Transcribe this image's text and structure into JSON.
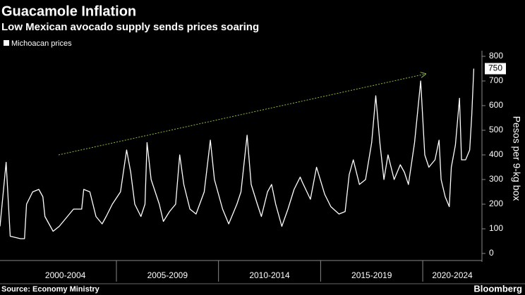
{
  "chart_data": {
    "type": "line",
    "title": "Guacamole Inflation",
    "subtitle": "Low Mexican avocado supply sends prices soaring",
    "y_axis_label": "Pesos per 9-kg box",
    "source": "Source: Economy Ministry",
    "brand": "Bloomberg",
    "legend_position": "top-left",
    "grid": false,
    "xlim": [
      1999.3,
      2022.9
    ],
    "ylim": [
      -20,
      800
    ],
    "yticks": [
      0,
      100,
      200,
      300,
      400,
      500,
      600,
      700,
      800
    ],
    "x_groups": [
      {
        "label": "2000-2004",
        "start": 2000,
        "end": 2005
      },
      {
        "label": "2005-2009",
        "start": 2005,
        "end": 2010
      },
      {
        "label": "2010-2014",
        "start": 2010,
        "end": 2015
      },
      {
        "label": "2015-2019",
        "start": 2015,
        "end": 2020
      },
      {
        "label": "2020-2024",
        "start": 2020,
        "end": 2025
      }
    ],
    "x": [
      1999.3,
      1999.6,
      1999.8,
      2000.3,
      2000.5,
      2000.6,
      2000.9,
      2001.2,
      2001.4,
      2001.5,
      2001.9,
      2002.2,
      2002.6,
      2002.9,
      2003.3,
      2003.4,
      2003.7,
      2004.0,
      2004.3,
      2004.5,
      2004.8,
      2005.2,
      2005.5,
      2005.7,
      2005.9,
      2006.2,
      2006.4,
      2006.5,
      2006.7,
      2007.1,
      2007.3,
      2007.6,
      2007.9,
      2008.1,
      2008.3,
      2008.6,
      2008.9,
      2009.3,
      2009.6,
      2009.8,
      2010.2,
      2010.5,
      2010.9,
      2011.1,
      2011.4,
      2011.6,
      2011.9,
      2012.1,
      2012.4,
      2012.6,
      2012.8,
      2013.1,
      2013.4,
      2013.7,
      2014.0,
      2014.1,
      2014.5,
      2014.8,
      2015.2,
      2015.5,
      2015.9,
      2016.2,
      2016.4,
      2016.6,
      2016.9,
      2017.2,
      2017.5,
      2017.7,
      2017.9,
      2018.1,
      2018.3,
      2018.6,
      2018.9,
      2019.1,
      2019.3,
      2019.6,
      2019.9,
      2020.1,
      2020.3,
      2020.6,
      2020.8,
      2020.9,
      2021.1,
      2021.3,
      2021.4,
      2021.6,
      2021.8,
      2021.9,
      2022.1,
      2022.3,
      2022.4,
      2022.5
    ],
    "series": [
      {
        "name": "Michoacan prices",
        "color": "#ffffff",
        "values": [
          110,
          370,
          70,
          60,
          60,
          200,
          250,
          260,
          230,
          150,
          90,
          110,
          150,
          180,
          180,
          260,
          250,
          150,
          120,
          150,
          200,
          250,
          420,
          330,
          200,
          150,
          200,
          450,
          300,
          200,
          130,
          170,
          200,
          400,
          280,
          180,
          160,
          250,
          460,
          300,
          180,
          120,
          200,
          250,
          480,
          280,
          200,
          150,
          250,
          280,
          200,
          110,
          180,
          260,
          310,
          290,
          220,
          350,
          240,
          190,
          160,
          170,
          320,
          380,
          280,
          300,
          450,
          640,
          450,
          300,
          400,
          300,
          360,
          330,
          280,
          450,
          700,
          400,
          350,
          380,
          460,
          300,
          230,
          190,
          350,
          440,
          630,
          380,
          380,
          420,
          560,
          750
        ]
      }
    ]
  }
}
